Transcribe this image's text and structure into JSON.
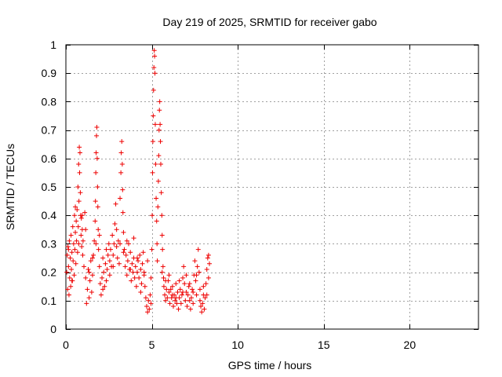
{
  "chart_data": {
    "type": "scatter",
    "title": "Day 219 of 2025, SRMTID for receiver gabo",
    "xlabel": "GPS time / hours",
    "ylabel": "SRMTID / TECUs",
    "xlim": [
      0,
      24
    ],
    "ylim": [
      0,
      1
    ],
    "xticks": [
      0,
      5,
      10,
      15,
      20
    ],
    "xtick_labels": [
      "0",
      "5",
      "10",
      "15",
      "20"
    ],
    "yticks": [
      0,
      0.1,
      0.2,
      0.3,
      0.4,
      0.5,
      0.6,
      0.7,
      0.8,
      0.9,
      1
    ],
    "ytick_labels": [
      "0",
      "0.1",
      "0.2",
      "0.3",
      "0.4",
      "0.5",
      "0.6",
      "0.7",
      "0.8",
      "0.9",
      "1"
    ],
    "grid": true,
    "marker": "+",
    "color": "#ee0000",
    "series": [
      {
        "name": "SRMTID",
        "points": [
          [
            0.05,
            0.2
          ],
          [
            0.08,
            0.26
          ],
          [
            0.1,
            0.14
          ],
          [
            0.12,
            0.29
          ],
          [
            0.15,
            0.22
          ],
          [
            0.18,
            0.12
          ],
          [
            0.2,
            0.31
          ],
          [
            0.22,
            0.18
          ],
          [
            0.25,
            0.25
          ],
          [
            0.28,
            0.15
          ],
          [
            0.3,
            0.33
          ],
          [
            0.32,
            0.21
          ],
          [
            0.35,
            0.27
          ],
          [
            0.38,
            0.17
          ],
          [
            0.4,
            0.36
          ],
          [
            0.42,
            0.24
          ],
          [
            0.45,
            0.3
          ],
          [
            0.48,
            0.19
          ],
          [
            0.5,
            0.4
          ],
          [
            0.52,
            0.28
          ],
          [
            0.55,
            0.34
          ],
          [
            0.58,
            0.23
          ],
          [
            0.6,
            0.38
          ],
          [
            0.62,
            0.31
          ],
          [
            0.65,
            0.42
          ],
          [
            0.68,
            0.27
          ],
          [
            0.7,
            0.5
          ],
          [
            0.72,
            0.36
          ],
          [
            0.74,
            0.58
          ],
          [
            0.76,
            0.45
          ],
          [
            0.78,
            0.64
          ],
          [
            0.8,
            0.55
          ],
          [
            0.82,
            0.62
          ],
          [
            0.84,
            0.48
          ],
          [
            0.86,
            0.4
          ],
          [
            0.88,
            0.33
          ],
          [
            0.9,
            0.39
          ],
          [
            0.92,
            0.29
          ],
          [
            0.95,
            0.35
          ],
          [
            0.98,
            0.26
          ],
          [
            1.0,
            0.31
          ],
          [
            1.05,
            0.22
          ],
          [
            1.1,
            0.41
          ],
          [
            1.15,
            0.18
          ],
          [
            1.2,
            0.09
          ],
          [
            1.25,
            0.14
          ],
          [
            1.3,
            0.21
          ],
          [
            1.35,
            0.11
          ],
          [
            1.4,
            0.17
          ],
          [
            1.45,
            0.24
          ],
          [
            1.5,
            0.13
          ],
          [
            1.55,
            0.19
          ],
          [
            1.6,
            0.26
          ],
          [
            1.65,
            0.31
          ],
          [
            1.7,
            0.38
          ],
          [
            1.72,
            0.45
          ],
          [
            1.74,
            0.55
          ],
          [
            1.76,
            0.62
          ],
          [
            1.78,
            0.68
          ],
          [
            1.8,
            0.71
          ],
          [
            1.82,
            0.6
          ],
          [
            1.84,
            0.5
          ],
          [
            1.86,
            0.43
          ],
          [
            1.88,
            0.35
          ],
          [
            1.9,
            0.28
          ],
          [
            1.95,
            0.22
          ],
          [
            2.0,
            0.16
          ],
          [
            2.05,
            0.12
          ],
          [
            2.1,
            0.18
          ],
          [
            2.15,
            0.14
          ],
          [
            2.2,
            0.2
          ],
          [
            2.25,
            0.15
          ],
          [
            2.3,
            0.23
          ],
          [
            2.35,
            0.17
          ],
          [
            2.4,
            0.21
          ],
          [
            2.45,
            0.26
          ],
          [
            2.5,
            0.3
          ],
          [
            2.55,
            0.24
          ],
          [
            2.6,
            0.28
          ],
          [
            2.65,
            0.22
          ],
          [
            2.7,
            0.33
          ],
          [
            2.75,
            0.26
          ],
          [
            2.8,
            0.3
          ],
          [
            2.85,
            0.37
          ],
          [
            2.9,
            0.44
          ],
          [
            2.95,
            0.29
          ],
          [
            3.0,
            0.25
          ],
          [
            3.05,
            0.31
          ],
          [
            3.1,
            0.23
          ],
          [
            3.15,
            0.46
          ],
          [
            3.2,
            0.55
          ],
          [
            3.22,
            0.62
          ],
          [
            3.25,
            0.66
          ],
          [
            3.28,
            0.58
          ],
          [
            3.3,
            0.49
          ],
          [
            3.32,
            0.41
          ],
          [
            3.35,
            0.34
          ],
          [
            3.4,
            0.28
          ],
          [
            3.45,
            0.22
          ],
          [
            3.5,
            0.26
          ],
          [
            3.55,
            0.19
          ],
          [
            3.6,
            0.24
          ],
          [
            3.65,
            0.3
          ],
          [
            3.7,
            0.21
          ],
          [
            3.75,
            0.27
          ],
          [
            3.8,
            0.17
          ],
          [
            3.85,
            0.23
          ],
          [
            3.9,
            0.2
          ],
          [
            3.95,
            0.25
          ],
          [
            4.0,
            0.18
          ],
          [
            4.05,
            0.22
          ],
          [
            4.1,
            0.15
          ],
          [
            4.15,
            0.2
          ],
          [
            4.2,
            0.24
          ],
          [
            4.25,
            0.18
          ],
          [
            4.3,
            0.26
          ],
          [
            4.35,
            0.21
          ],
          [
            4.4,
            0.16
          ],
          [
            4.45,
            0.23
          ],
          [
            4.5,
            0.27
          ],
          [
            4.55,
            0.2
          ],
          [
            4.6,
            0.15
          ],
          [
            4.65,
            0.11
          ],
          [
            4.7,
            0.08
          ],
          [
            4.75,
            0.06
          ],
          [
            4.8,
            0.1
          ],
          [
            4.85,
            0.07
          ],
          [
            4.9,
            0.12
          ],
          [
            4.95,
            0.18
          ],
          [
            5.0,
            0.28
          ],
          [
            5.02,
            0.4
          ],
          [
            5.04,
            0.55
          ],
          [
            5.06,
            0.66
          ],
          [
            5.08,
            0.75
          ],
          [
            5.1,
            0.84
          ],
          [
            5.12,
            0.92
          ],
          [
            5.14,
            0.98
          ],
          [
            5.16,
            0.96
          ],
          [
            5.18,
            0.9
          ],
          [
            5.2,
            0.72
          ],
          [
            5.22,
            0.58
          ],
          [
            5.25,
            0.46
          ],
          [
            5.28,
            0.38
          ],
          [
            5.3,
            0.3
          ],
          [
            5.32,
            0.24
          ],
          [
            5.35,
            0.43
          ],
          [
            5.38,
            0.52
          ],
          [
            5.4,
            0.61
          ],
          [
            5.42,
            0.7
          ],
          [
            5.44,
            0.77
          ],
          [
            5.46,
            0.8
          ],
          [
            5.48,
            0.72
          ],
          [
            5.5,
            0.66
          ],
          [
            5.52,
            0.58
          ],
          [
            5.55,
            0.48
          ],
          [
            5.58,
            0.4
          ],
          [
            5.6,
            0.33
          ],
          [
            5.62,
            0.28
          ],
          [
            5.65,
            0.22
          ],
          [
            5.68,
            0.18
          ],
          [
            5.7,
            0.15
          ],
          [
            5.75,
            0.12
          ],
          [
            5.8,
            0.1
          ],
          [
            5.85,
            0.14
          ],
          [
            5.9,
            0.11
          ],
          [
            5.95,
            0.17
          ],
          [
            6.0,
            0.13
          ],
          [
            6.05,
            0.09
          ],
          [
            6.1,
            0.14
          ],
          [
            6.15,
            0.11
          ],
          [
            6.2,
            0.15
          ],
          [
            6.25,
            0.08
          ],
          [
            6.3,
            0.12
          ],
          [
            6.35,
            0.1
          ],
          [
            6.4,
            0.16
          ],
          [
            6.45,
            0.09
          ],
          [
            6.5,
            0.13
          ],
          [
            6.55,
            0.07
          ],
          [
            6.6,
            0.11
          ],
          [
            6.65,
            0.14
          ],
          [
            6.7,
            0.09
          ],
          [
            6.75,
            0.12
          ],
          [
            6.8,
            0.18
          ],
          [
            6.85,
            0.22
          ],
          [
            6.9,
            0.16
          ],
          [
            6.95,
            0.1
          ],
          [
            7.0,
            0.13
          ],
          [
            7.05,
            0.08
          ],
          [
            7.1,
            0.12
          ],
          [
            7.15,
            0.15
          ],
          [
            7.2,
            0.1
          ],
          [
            7.25,
            0.07
          ],
          [
            7.3,
            0.11
          ],
          [
            7.35,
            0.14
          ],
          [
            7.4,
            0.09
          ],
          [
            7.45,
            0.19
          ],
          [
            7.5,
            0.24
          ],
          [
            7.55,
            0.17
          ],
          [
            7.6,
            0.12
          ],
          [
            7.65,
            0.22
          ],
          [
            7.7,
            0.28
          ],
          [
            7.75,
            0.2
          ],
          [
            7.8,
            0.14
          ],
          [
            7.85,
            0.08
          ],
          [
            7.9,
            0.06
          ],
          [
            7.95,
            0.09
          ],
          [
            8.0,
            0.12
          ],
          [
            8.05,
            0.07
          ],
          [
            8.1,
            0.11
          ],
          [
            8.15,
            0.16
          ],
          [
            8.2,
            0.21
          ],
          [
            8.25,
            0.25
          ],
          [
            8.3,
            0.18
          ],
          [
            8.35,
            0.23
          ],
          [
            0.15,
            0.28
          ],
          [
            0.35,
            0.17
          ],
          [
            0.55,
            0.43
          ],
          [
            0.75,
            0.3
          ],
          [
            0.95,
            0.4
          ],
          [
            1.15,
            0.35
          ],
          [
            1.35,
            0.2
          ],
          [
            1.55,
            0.25
          ],
          [
            1.75,
            0.3
          ],
          [
            1.95,
            0.33
          ],
          [
            2.15,
            0.25
          ],
          [
            2.35,
            0.28
          ],
          [
            2.55,
            0.19
          ],
          [
            2.75,
            0.22
          ],
          [
            2.95,
            0.35
          ],
          [
            3.15,
            0.3
          ],
          [
            3.35,
            0.27
          ],
          [
            3.55,
            0.31
          ],
          [
            3.75,
            0.21
          ],
          [
            3.95,
            0.32
          ],
          [
            4.15,
            0.25
          ],
          [
            4.35,
            0.13
          ],
          [
            4.55,
            0.19
          ],
          [
            4.75,
            0.24
          ],
          [
            4.95,
            0.09
          ],
          [
            5.6,
            0.2
          ],
          [
            5.8,
            0.17
          ],
          [
            6.0,
            0.19
          ],
          [
            6.2,
            0.12
          ],
          [
            6.4,
            0.11
          ],
          [
            6.6,
            0.17
          ],
          [
            6.8,
            0.13
          ],
          [
            7.0,
            0.19
          ],
          [
            7.2,
            0.16
          ],
          [
            7.4,
            0.13
          ],
          [
            7.6,
            0.19
          ],
          [
            7.8,
            0.1
          ],
          [
            8.0,
            0.15
          ],
          [
            8.2,
            0.12
          ],
          [
            8.3,
            0.26
          ]
        ]
      }
    ]
  }
}
